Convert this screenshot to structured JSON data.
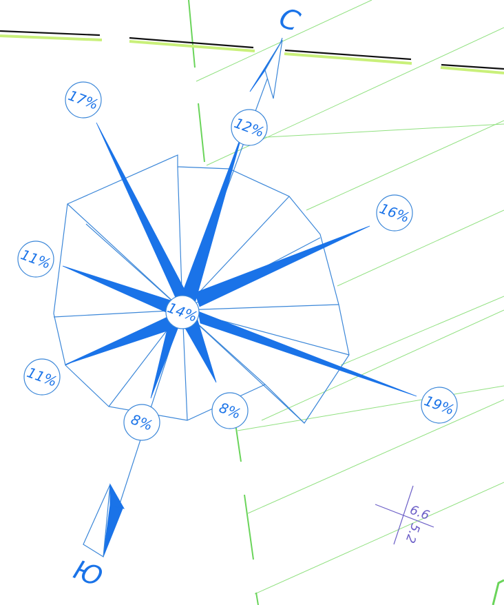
{
  "compass": {
    "north_label": "С",
    "south_label": "Ю"
  },
  "wind_rose": {
    "center_label": "14%",
    "directions": [
      {
        "dir": "N",
        "label": "12%"
      },
      {
        "dir": "NE",
        "label": "16%"
      },
      {
        "dir": "E",
        "label": "19%"
      },
      {
        "dir": "SE",
        "label": "8%"
      },
      {
        "dir": "S",
        "label": "8%"
      },
      {
        "dir": "SW",
        "label": "11%"
      },
      {
        "dir": "W",
        "label": "11%"
      },
      {
        "dir": "NW",
        "label": "17%"
      }
    ]
  },
  "elevation_mark": {
    "top": "6.6",
    "bottom": "5.2"
  },
  "colors": {
    "rose_blue": "#1a73e8",
    "outline_blue": "#3a86d8",
    "green_line": "#7ddc6a",
    "elev_purple": "#6c5fc7"
  }
}
